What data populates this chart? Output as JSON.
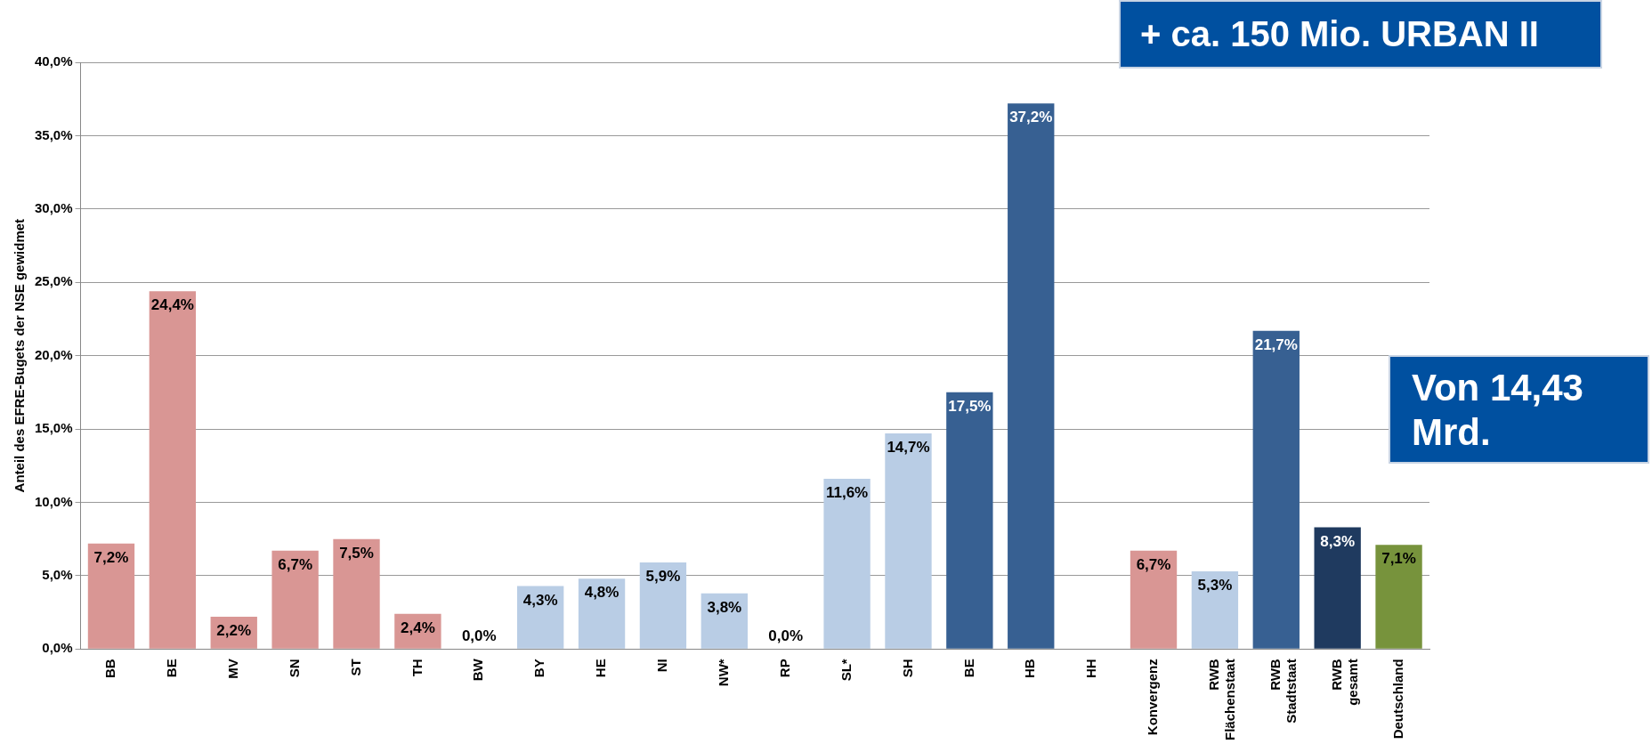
{
  "chart_data": {
    "type": "bar",
    "ylabel": "Anteil des EFRE-Bugets der NSE gewidmet",
    "categories": [
      "BB",
      "BE",
      "MV",
      "SN",
      "ST",
      "TH",
      "BW",
      "BY",
      "HE",
      "NI",
      "NW*",
      "RP",
      "SL*",
      "SH",
      "BE",
      "HB",
      "HH",
      "Konvergenz",
      "RWB Flächenstaat",
      "RWB Stadtstaat",
      "RWB gesamt",
      "Deutschland"
    ],
    "values": [
      7.2,
      24.4,
      2.2,
      6.7,
      7.5,
      2.4,
      0.0,
      4.3,
      4.8,
      5.9,
      3.8,
      0.0,
      11.6,
      14.7,
      17.5,
      37.2,
      null,
      6.7,
      5.3,
      21.7,
      8.3,
      7.1
    ],
    "value_labels": [
      "7,2%",
      "24,4%",
      "2,2%",
      "6,7%",
      "7,5%",
      "2,4%",
      "0,0%",
      "4,3%",
      "4,8%",
      "5,9%",
      "3,8%",
      "0,0%",
      "11,6%",
      "14,7%",
      "17,5%",
      "37,2%",
      null,
      "6,7%",
      "5,3%",
      "21,7%",
      "8,3%",
      "7,1%"
    ],
    "colors": [
      "#d99694",
      "#d99694",
      "#d99694",
      "#d99694",
      "#d99694",
      "#d99694",
      "#b9cde5",
      "#b9cde5",
      "#b9cde5",
      "#b9cde5",
      "#b9cde5",
      "#b9cde5",
      "#b9cde5",
      "#b9cde5",
      "#376092",
      "#376092",
      "#376092",
      "#d99694",
      "#b9cde5",
      "#376092",
      "#1f3a5f",
      "#77933c"
    ],
    "ylim": [
      0,
      40
    ],
    "yticks": [
      {
        "value": 0,
        "label": "0,0%"
      },
      {
        "value": 5,
        "label": "5,0%"
      },
      {
        "value": 10,
        "label": "10,0%"
      },
      {
        "value": 15,
        "label": "15,0%"
      },
      {
        "value": 20,
        "label": "20,0%"
      },
      {
        "value": 25,
        "label": "25,0%"
      },
      {
        "value": 30,
        "label": "30,0%"
      },
      {
        "value": 35,
        "label": "35,0%"
      },
      {
        "value": 40,
        "label": "40,0%"
      }
    ],
    "grid": "y",
    "legend": false,
    "annotations": [
      "+ ca. 150 Mio. URBAN II",
      "Von 14,43 Mrd."
    ]
  }
}
